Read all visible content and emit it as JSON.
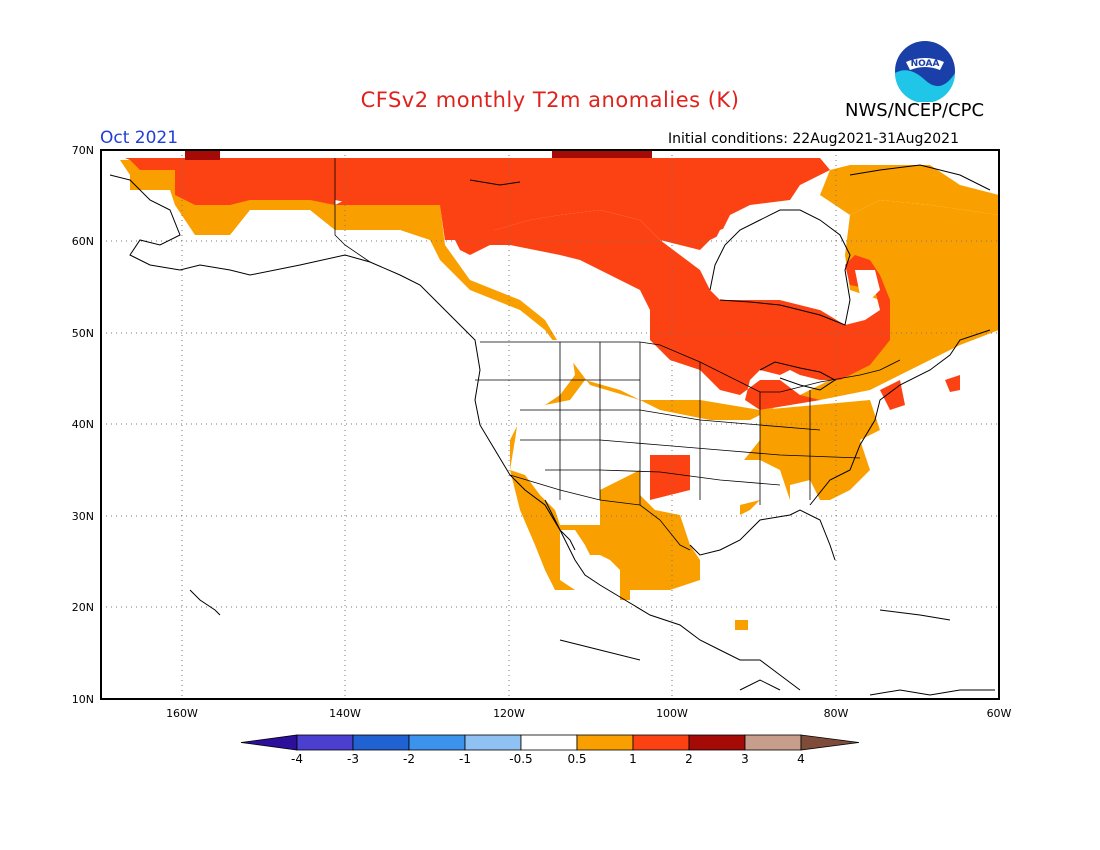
{
  "header": {
    "title": "CFSv2 monthly T2m anomalies (K)",
    "agency": "NWS/NCEP/CPC",
    "month": "Oct 2021",
    "initial_conditions": "Initial conditions: 22Aug2021-31Aug2021",
    "logo_text": "NOAA"
  },
  "map": {
    "lat_range": [
      10,
      70
    ],
    "lon_range": [
      -170,
      -60
    ],
    "lat_labels": [
      "70N",
      "60N",
      "50N",
      "40N",
      "30N",
      "20N",
      "10N"
    ],
    "lon_labels": [
      "160W",
      "140W",
      "120W",
      "100W",
      "80W",
      "60W"
    ],
    "grid": true
  },
  "colorbar": {
    "tick_labels": [
      "-4",
      "-3",
      "-2",
      "-1",
      "-0.5",
      "0.5",
      "1",
      "2",
      "3",
      "4"
    ],
    "bins": [
      {
        "range": "< -4",
        "color": "#2c0f9a"
      },
      {
        "range": "-4 to -3",
        "color": "#4b3fd0"
      },
      {
        "range": "-3 to -2",
        "color": "#2162d3"
      },
      {
        "range": "-2 to -1",
        "color": "#3c93eb"
      },
      {
        "range": "-1 to -0.5",
        "color": "#8fc2f2"
      },
      {
        "range": "-0.5 to 0.5",
        "color": "#ffffff"
      },
      {
        "range": "0.5 to 1",
        "color": "#f9a000"
      },
      {
        "range": "1 to 2",
        "color": "#fc4212"
      },
      {
        "range": "2 to 3",
        "color": "#a40b06"
      },
      {
        "range": "3 to 4",
        "color": "#c79e8c"
      },
      {
        "range": "> 4",
        "color": "#7f4c3a"
      }
    ]
  },
  "anomaly_fields": {
    "colors": {
      "0.5-1": "#f9a000",
      "1-2": "#fc4212",
      "2-3": "#a40b06"
    }
  }
}
